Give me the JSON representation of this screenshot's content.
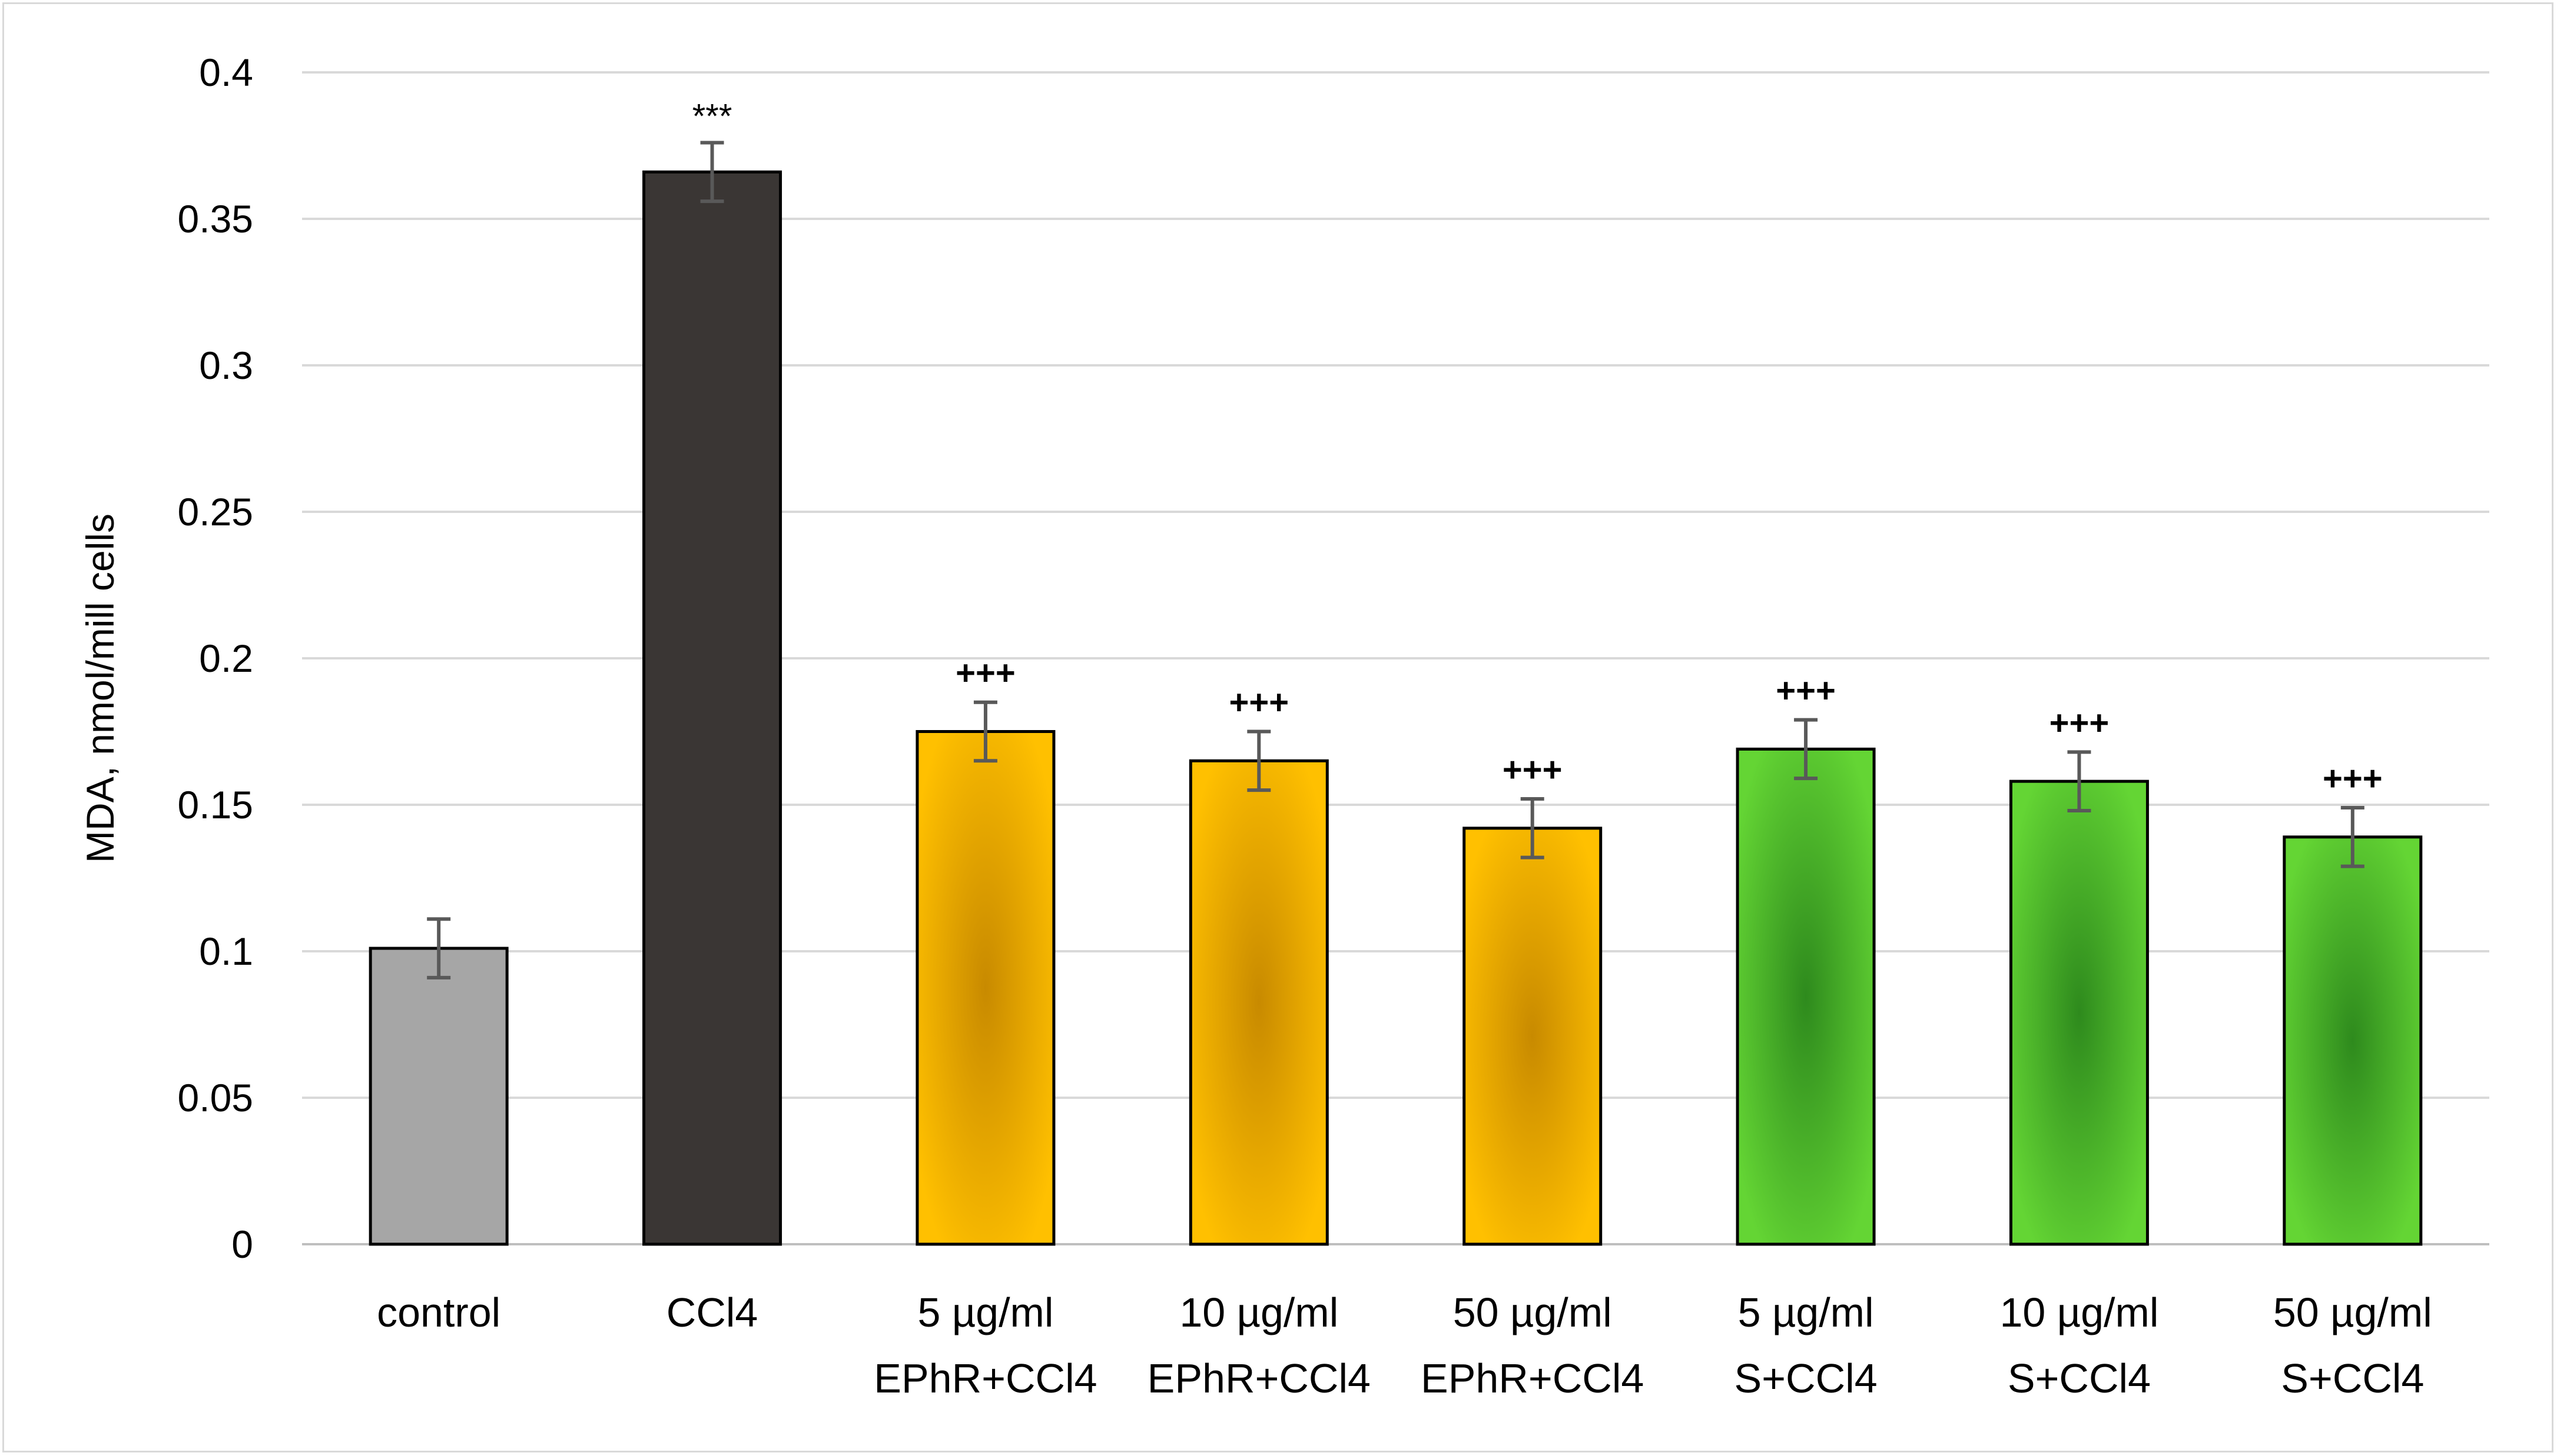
{
  "chart_data": {
    "type": "bar",
    "ylabel": "MDA, nmol/mill cells",
    "ylim": [
      0,
      0.4
    ],
    "ytick_step": 0.05,
    "yticks": [
      "0",
      "0.05",
      "0.1",
      "0.15",
      "0.2",
      "0.25",
      "0.3",
      "0.35",
      "0.4"
    ],
    "grid": true,
    "categories": [
      [
        "control"
      ],
      [
        "CCl4"
      ],
      [
        "5 µg/ml",
        "EPhR+CCl4"
      ],
      [
        "10 µg/ml",
        "EPhR+CCl4"
      ],
      [
        "50 µg/ml",
        "EPhR+CCl4"
      ],
      [
        "5 µg/ml",
        "S+CCl4"
      ],
      [
        "10 µg/ml",
        "S+CCl4"
      ],
      [
        "50 µg/ml",
        "S+CCl4"
      ]
    ],
    "values": [
      0.101,
      0.366,
      0.175,
      0.165,
      0.142,
      0.169,
      0.158,
      0.139
    ],
    "errors": [
      0.01,
      0.01,
      0.01,
      0.01,
      0.01,
      0.01,
      0.01,
      0.01
    ],
    "annotations": [
      "",
      "***",
      "+++",
      "+++",
      "+++",
      "+++",
      "+++",
      "+++"
    ],
    "bar_styles": [
      "gray",
      "dark",
      "orange",
      "orange",
      "orange",
      "green",
      "green",
      "green"
    ]
  },
  "colors": {
    "gray": "#a6a6a6",
    "dark": "#3a3634",
    "orange_edge": "#ffc000",
    "orange_core": "#c88a00",
    "green_edge": "#64d534",
    "green_core": "#2e8a1d",
    "grid": "#d9d9d9",
    "axis": "#bfbfbf",
    "error": "#595959",
    "outline": "#000000"
  }
}
